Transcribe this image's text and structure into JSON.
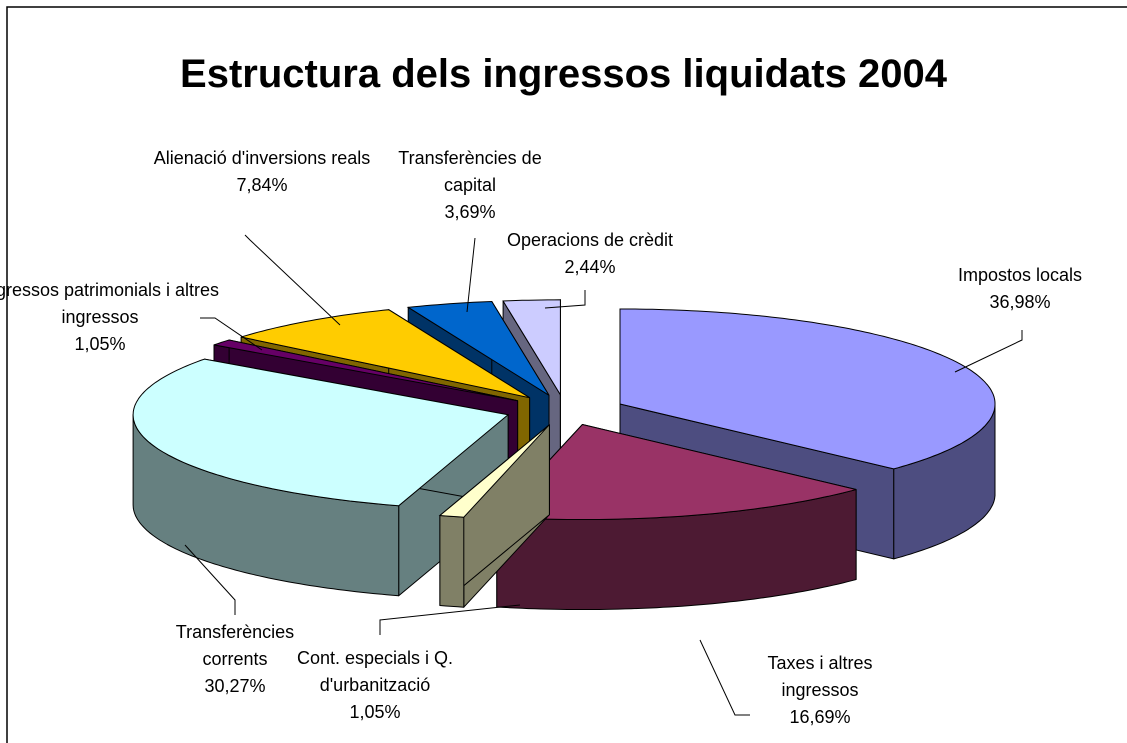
{
  "chart_data": {
    "type": "pie3d",
    "title": "Estructura dels ingressos liquidats 2004",
    "categories": [
      "Impostos locals",
      "Taxes i altres ingressos",
      "Cont. especials i Q. d'urbanització",
      "Transferències corrents",
      "Ingressos patrimonials i altres ingressos",
      "Alienació d'inversions reals",
      "Transferències de capital",
      "Operacions de crèdit"
    ],
    "values": [
      36.98,
      16.69,
      1.05,
      30.27,
      1.05,
      7.84,
      3.69,
      2.44
    ],
    "value_labels": [
      "36,98%",
      "16,69%",
      "1,05%",
      "30,27%",
      "1,05%",
      "7,84%",
      "3,69%",
      "2,44%"
    ],
    "colors": [
      "#9999ff",
      "#993366",
      "#ffffcc",
      "#ccffff",
      "#660066",
      "#ffcc00",
      "#0066cc",
      "#ccccff"
    ]
  }
}
